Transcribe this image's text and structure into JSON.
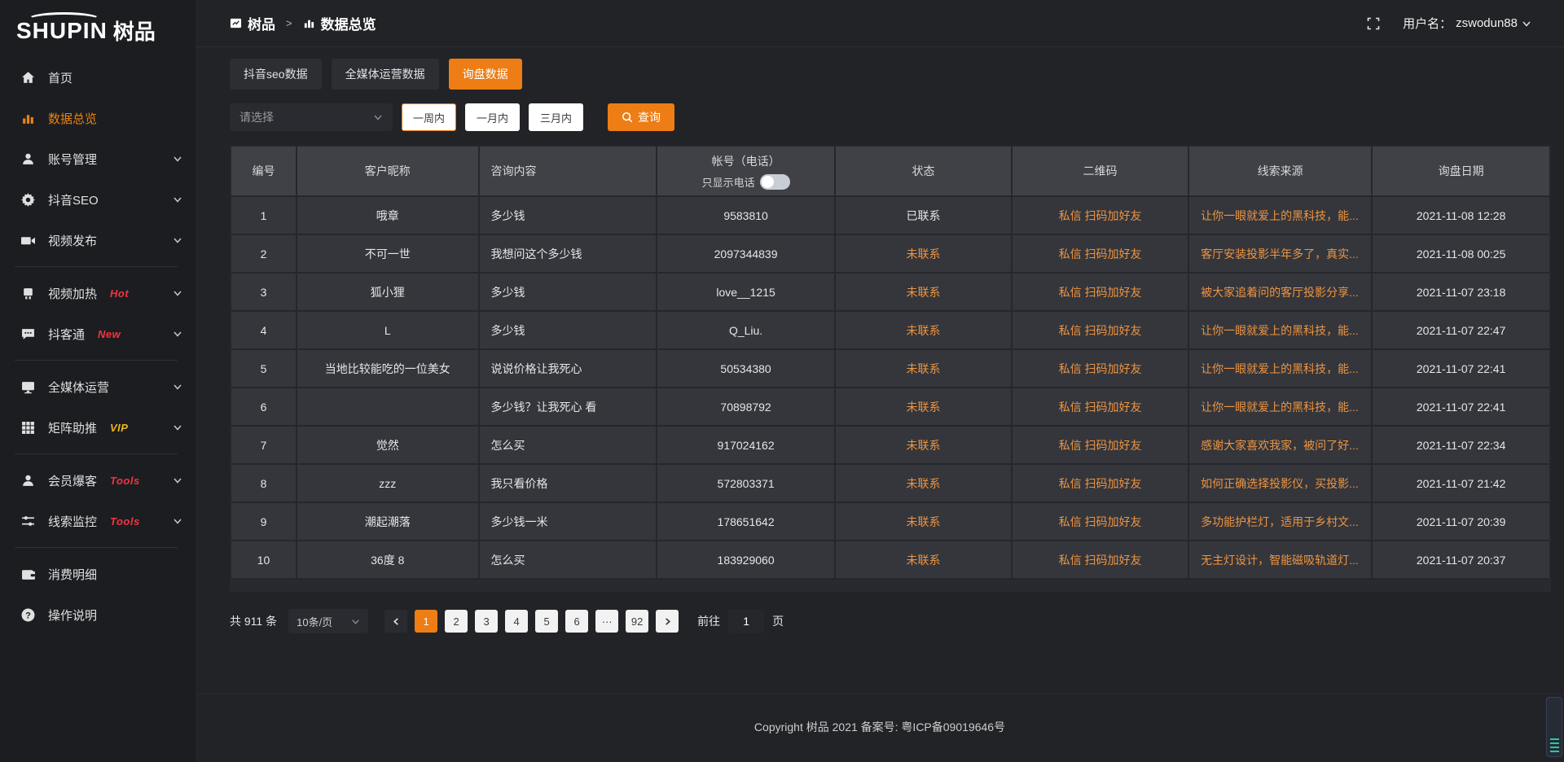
{
  "app": {
    "logo_en": "SHUPIN",
    "logo_cn": "树品",
    "user_label": "用户名：",
    "username": "zswodun88"
  },
  "colors": {
    "accent_orange": "#ed7d14",
    "link_orange": "#ee9440",
    "badge_red": "#f3343f",
    "badge_vip_yellow": "#eeb41e",
    "widget_teal": "#25c9a0"
  },
  "icons": [
    "home-icon",
    "bar-chart-icon",
    "user-icon",
    "gear-icon",
    "video-upload-icon",
    "heat-icon",
    "chat-icon",
    "monitor-icon",
    "grid-icon",
    "member-icon",
    "sliders-icon",
    "wallet-icon",
    "question-icon",
    "chevron-down-icon",
    "fullscreen-icon",
    "search-icon",
    "breadcrumb-app-icon"
  ],
  "breadcrumb": {
    "root": "树品",
    "separator": ">",
    "current": "数据总览"
  },
  "sidebar": {
    "items": [
      {
        "label": "首页",
        "icon": "home"
      },
      {
        "label": "数据总览",
        "icon": "bar-chart",
        "active": true
      },
      {
        "label": "账号管理",
        "icon": "user",
        "chevron": true
      },
      {
        "label": "抖音SEO",
        "icon": "gear",
        "chevron": true
      },
      {
        "label": "视频发布",
        "icon": "video-upload",
        "chevron": true
      },
      {
        "divider": true
      },
      {
        "label": "视频加热",
        "icon": "heat",
        "badge": "Hot",
        "badge_color": "#f3343f",
        "chevron": true
      },
      {
        "label": "抖客通",
        "icon": "chat",
        "badge": "New",
        "badge_color": "#f3343f",
        "chevron": true
      },
      {
        "divider": true
      },
      {
        "label": "全媒体运营",
        "icon": "monitor",
        "chevron": true
      },
      {
        "label": "矩阵助推",
        "icon": "grid",
        "badge": "VIP",
        "badge_color": "#eeb41e",
        "chevron": true
      },
      {
        "divider": true
      },
      {
        "label": "会员爆客",
        "icon": "member",
        "badge": "Tools",
        "badge_color": "#f3343f",
        "chevron": true
      },
      {
        "label": "线索监控",
        "icon": "sliders",
        "badge": "Tools",
        "badge_color": "#f3343f",
        "chevron": true
      },
      {
        "divider": true
      },
      {
        "label": "消费明细",
        "icon": "wallet"
      },
      {
        "label": "操作说明",
        "icon": "question"
      }
    ]
  },
  "tabs": [
    {
      "label": "抖音seo数据",
      "active": false
    },
    {
      "label": "全媒体运营数据",
      "active": false
    },
    {
      "label": "询盘数据",
      "active": true
    }
  ],
  "filters": {
    "select_placeholder": "请选择",
    "periods": [
      "一周内",
      "一月内",
      "三月内"
    ],
    "active_period": "一周内",
    "search_label": "查询"
  },
  "table": {
    "columns": [
      "编号",
      "客户昵称",
      "咨询内容",
      "帐号（电话）",
      "状态",
      "二维码",
      "线索来源",
      "询盘日期"
    ],
    "phone_toggle_label": "只显示电话",
    "phone_toggle_on": false,
    "rows": [
      {
        "no": "1",
        "nickname": "哦章",
        "content": "多少钱",
        "account": "9583810",
        "status": "已联系",
        "status_type": "contacted",
        "qrcode": "私信 扫码加好友",
        "source": "让你一眼就爱上的黑科技，能...",
        "date": "2021-11-08 12:28"
      },
      {
        "no": "2",
        "nickname": "不可一世",
        "content": "我想问这个多少钱",
        "account": "2097344839",
        "status": "未联系",
        "status_type": "pending",
        "qrcode": "私信 扫码加好友",
        "source": "客厅安装投影半年多了，真实...",
        "date": "2021-11-08 00:25"
      },
      {
        "no": "3",
        "nickname": "狐小狸",
        "content": "多少钱",
        "account": "love__1215",
        "status": "未联系",
        "status_type": "pending",
        "qrcode": "私信 扫码加好友",
        "source": "被大家追着问的客厅投影分享...",
        "date": "2021-11-07 23:18"
      },
      {
        "no": "4",
        "nickname": "L",
        "content": "多少钱",
        "account": "Q_Liu.",
        "status": "未联系",
        "status_type": "pending",
        "qrcode": "私信 扫码加好友",
        "source": "让你一眼就爱上的黑科技，能...",
        "date": "2021-11-07 22:47"
      },
      {
        "no": "5",
        "nickname": "当地比较能吃的一位美女",
        "content": "说说价格让我死心",
        "account": "50534380",
        "status": "未联系",
        "status_type": "pending",
        "qrcode": "私信 扫码加好友",
        "source": "让你一眼就爱上的黑科技，能...",
        "date": "2021-11-07 22:41"
      },
      {
        "no": "6",
        "nickname": "",
        "content": "多少钱？让我死心 看",
        "account": "70898792",
        "status": "未联系",
        "status_type": "pending",
        "qrcode": "私信 扫码加好友",
        "source": "让你一眼就爱上的黑科技，能...",
        "date": "2021-11-07 22:41"
      },
      {
        "no": "7",
        "nickname": "觉然",
        "content": "怎么买",
        "account": "917024162",
        "status": "未联系",
        "status_type": "pending",
        "qrcode": "私信 扫码加好友",
        "source": "感谢大家喜欢我家，被问了好...",
        "date": "2021-11-07 22:34"
      },
      {
        "no": "8",
        "nickname": "zzz",
        "content": "我只看价格",
        "account": "572803371",
        "status": "未联系",
        "status_type": "pending",
        "qrcode": "私信 扫码加好友",
        "source": "如何正确选择投影仪，买投影...",
        "date": "2021-11-07 21:42"
      },
      {
        "no": "9",
        "nickname": "潮起潮落",
        "content": "多少钱一米",
        "account": "178651642",
        "status": "未联系",
        "status_type": "pending",
        "qrcode": "私信 扫码加好友",
        "source": "多功能护栏灯，适用于乡村文...",
        "date": "2021-11-07 20:39"
      },
      {
        "no": "10",
        "nickname": "36度 8",
        "content": "怎么买",
        "account": "183929060",
        "status": "未联系",
        "status_type": "pending",
        "qrcode": "私信 扫码加好友",
        "source": "无主灯设计，智能磁吸轨道灯...",
        "date": "2021-11-07 20:37"
      }
    ]
  },
  "pagination": {
    "total_label": "共 911 条",
    "page_size": "10条/页",
    "pages": [
      "1",
      "2",
      "3",
      "4",
      "5",
      "6",
      "...",
      "92"
    ],
    "active_page": "1",
    "goto_label": "前往",
    "goto_value": "1",
    "goto_suffix": "页"
  },
  "footer": {
    "copyright": "Copyright 树品 2021 备案号: 粤ICP备09019646号"
  }
}
